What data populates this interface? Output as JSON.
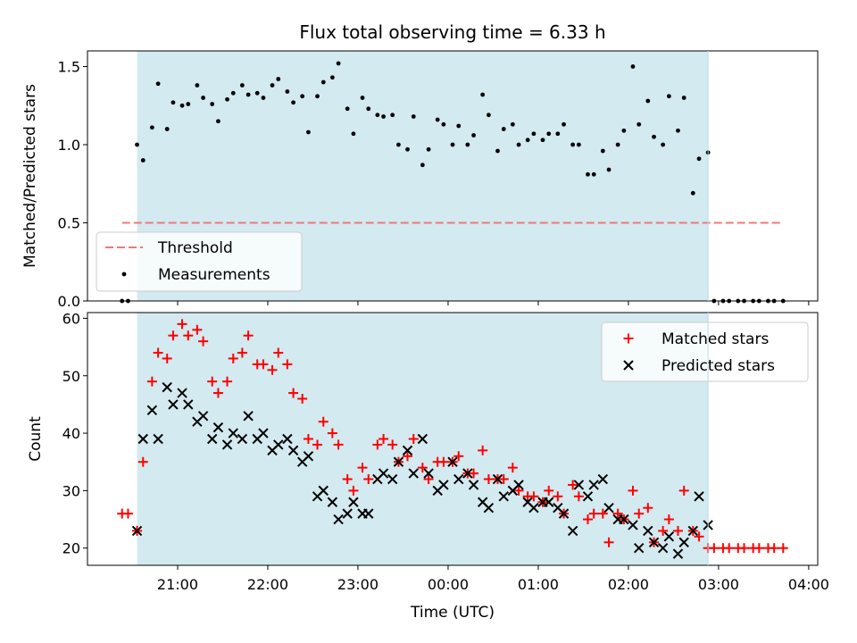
{
  "figure_title": "Flux total observing time = 6.33 h",
  "colors": {
    "shade": "#d3eaf0",
    "threshold": "#f07878",
    "matched": "#ff0000",
    "predicted": "#000000"
  },
  "chart_data": [
    {
      "type": "scatter",
      "title": "Flux total observing time = 6.33 h",
      "ylabel": "Matched/Predicted stars",
      "xlabel": "",
      "ylim": [
        0,
        1.6
      ],
      "yticks": [
        0.0,
        0.5,
        1.0,
        1.5
      ],
      "ytick_labels": [
        "0.0",
        "0.5",
        "1.0",
        "1.5"
      ],
      "x_unit": "hours since 20:00 UTC",
      "xlim": [
        0.0,
        8.1
      ],
      "grid": false,
      "legend_position": "lower-left",
      "shaded_interval": {
        "start": "20:33",
        "end": "02:53"
      },
      "threshold": {
        "name": "Threshold",
        "value": 0.5,
        "x_start": "20:23",
        "x_end": "03:43",
        "style": "dashed"
      },
      "series": [
        {
          "name": "Measurements",
          "marker": "dot",
          "x": [
            "20:23",
            "20:27",
            "20:33",
            "20:37",
            "20:43",
            "20:47",
            "20:53",
            "20:57",
            "21:03",
            "21:07",
            "21:13",
            "21:17",
            "21:23",
            "21:27",
            "21:33",
            "21:37",
            "21:43",
            "21:47",
            "21:53",
            "21:57",
            "22:03",
            "22:07",
            "22:13",
            "22:17",
            "22:23",
            "22:27",
            "22:33",
            "22:37",
            "22:43",
            "22:47",
            "22:53",
            "22:57",
            "23:03",
            "23:07",
            "23:13",
            "23:17",
            "23:23",
            "23:27",
            "23:33",
            "23:37",
            "23:43",
            "23:47",
            "23:53",
            "23:57",
            "00:03",
            "00:07",
            "00:13",
            "00:17",
            "00:23",
            "00:27",
            "00:33",
            "00:37",
            "00:43",
            "00:47",
            "00:53",
            "00:57",
            "01:03",
            "01:07",
            "01:13",
            "01:17",
            "01:23",
            "01:27",
            "01:33",
            "01:37",
            "01:43",
            "01:47",
            "01:53",
            "01:57",
            "02:03",
            "02:07",
            "02:13",
            "02:17",
            "02:23",
            "02:27",
            "02:33",
            "02:37",
            "02:43",
            "02:47",
            "02:53",
            "02:57",
            "03:03",
            "03:07",
            "03:13",
            "03:17",
            "03:23",
            "03:27",
            "03:33",
            "03:37",
            "03:43"
          ],
          "y": [
            0.0,
            0.0,
            1.0,
            0.9,
            1.11,
            1.39,
            1.1,
            1.27,
            1.25,
            1.26,
            1.38,
            1.3,
            1.26,
            1.15,
            1.29,
            1.33,
            1.38,
            1.32,
            1.33,
            1.3,
            1.38,
            1.42,
            1.34,
            1.27,
            1.31,
            1.08,
            1.31,
            1.4,
            1.43,
            1.52,
            1.23,
            1.07,
            1.3,
            1.23,
            1.19,
            1.18,
            1.19,
            1.0,
            0.97,
            1.18,
            0.87,
            0.97,
            1.16,
            1.13,
            1.0,
            1.12,
            1.0,
            1.06,
            1.32,
            1.19,
            0.96,
            1.1,
            1.13,
            1.0,
            1.03,
            1.07,
            1.03,
            1.07,
            1.07,
            1.13,
            1.0,
            1.0,
            0.81,
            0.81,
            0.96,
            0.84,
            1.0,
            1.09,
            1.5,
            1.13,
            1.28,
            1.05,
            1.0,
            1.31,
            1.09,
            1.3,
            0.69,
            0.91,
            0.95,
            0.0,
            0.0,
            0.0,
            0.0,
            0.0,
            0.0,
            0.0,
            0.0,
            0.0,
            0.0
          ]
        }
      ]
    },
    {
      "type": "scatter",
      "title": "",
      "ylabel": "Count",
      "xlabel": "Time (UTC)",
      "ylim": [
        17,
        61
      ],
      "yticks": [
        20,
        30,
        40,
        50,
        60
      ],
      "ytick_labels": [
        "20",
        "30",
        "40",
        "50",
        "60"
      ],
      "x_unit": "hours since 20:00 UTC",
      "xlim": [
        0.0,
        8.1
      ],
      "xticks": [
        "21:00",
        "22:00",
        "23:00",
        "00:00",
        "01:00",
        "02:00",
        "03:00",
        "04:00"
      ],
      "grid": false,
      "legend_position": "top-right",
      "shaded_interval": {
        "start": "20:33",
        "end": "02:53"
      },
      "series": [
        {
          "name": "Matched stars",
          "marker": "plus",
          "x": [
            "20:23",
            "20:27",
            "20:33",
            "20:37",
            "20:43",
            "20:47",
            "20:53",
            "20:57",
            "21:03",
            "21:07",
            "21:13",
            "21:17",
            "21:23",
            "21:27",
            "21:33",
            "21:37",
            "21:43",
            "21:47",
            "21:53",
            "21:57",
            "22:03",
            "22:07",
            "22:13",
            "22:17",
            "22:23",
            "22:27",
            "22:33",
            "22:37",
            "22:43",
            "22:47",
            "22:53",
            "22:57",
            "23:03",
            "23:07",
            "23:13",
            "23:17",
            "23:23",
            "23:27",
            "23:33",
            "23:37",
            "23:43",
            "23:47",
            "23:53",
            "23:57",
            "00:03",
            "00:07",
            "00:13",
            "00:17",
            "00:23",
            "00:27",
            "00:33",
            "00:37",
            "00:43",
            "00:47",
            "00:53",
            "00:57",
            "01:03",
            "01:07",
            "01:13",
            "01:17",
            "01:23",
            "01:27",
            "01:33",
            "01:37",
            "01:43",
            "01:47",
            "01:53",
            "01:57",
            "02:03",
            "02:07",
            "02:13",
            "02:17",
            "02:23",
            "02:27",
            "02:33",
            "02:37",
            "02:43",
            "02:47",
            "02:53",
            "02:57",
            "03:03",
            "03:07",
            "03:13",
            "03:17",
            "03:23",
            "03:27",
            "03:33",
            "03:37",
            "03:43"
          ],
          "y": [
            26,
            26,
            23,
            35,
            49,
            54,
            53,
            57,
            59,
            57,
            58,
            56,
            49,
            47,
            49,
            53,
            54,
            57,
            52,
            52,
            51,
            54,
            52,
            47,
            46,
            39,
            38,
            42,
            40,
            38,
            32,
            30,
            34,
            32,
            38,
            39,
            38,
            35,
            36,
            39,
            34,
            32,
            35,
            35,
            35,
            36,
            33,
            33,
            37,
            32,
            32,
            32,
            34,
            30,
            29,
            29,
            28,
            30,
            29,
            26,
            31,
            29,
            25,
            26,
            26,
            21,
            26,
            25,
            30,
            26,
            27,
            21,
            23,
            25,
            23,
            30,
            23,
            22,
            20,
            20,
            20,
            20,
            20,
            20,
            20,
            20,
            20,
            20,
            20
          ]
        },
        {
          "name": "Predicted stars",
          "marker": "x",
          "x": [
            "20:33",
            "20:37",
            "20:43",
            "20:47",
            "20:53",
            "20:57",
            "21:03",
            "21:07",
            "21:13",
            "21:17",
            "21:23",
            "21:27",
            "21:33",
            "21:37",
            "21:43",
            "21:47",
            "21:53",
            "21:57",
            "22:03",
            "22:07",
            "22:13",
            "22:17",
            "22:23",
            "22:27",
            "22:33",
            "22:37",
            "22:43",
            "22:47",
            "22:53",
            "22:57",
            "23:03",
            "23:07",
            "23:13",
            "23:17",
            "23:23",
            "23:27",
            "23:33",
            "23:37",
            "23:43",
            "23:47",
            "23:53",
            "23:57",
            "00:03",
            "00:07",
            "00:13",
            "00:17",
            "00:23",
            "00:27",
            "00:33",
            "00:37",
            "00:43",
            "00:47",
            "00:53",
            "00:57",
            "01:03",
            "01:07",
            "01:13",
            "01:17",
            "01:23",
            "01:27",
            "01:33",
            "01:37",
            "01:43",
            "01:47",
            "01:53",
            "01:57",
            "02:03",
            "02:07",
            "02:13",
            "02:17",
            "02:23",
            "02:27",
            "02:33",
            "02:37",
            "02:43",
            "02:47",
            "02:53"
          ],
          "y": [
            23,
            39,
            44,
            39,
            48,
            45,
            47,
            45,
            42,
            43,
            39,
            41,
            38,
            40,
            39,
            43,
            39,
            40,
            37,
            38,
            39,
            37,
            35,
            36,
            29,
            30,
            28,
            25,
            26,
            28,
            26,
            26,
            32,
            33,
            32,
            35,
            37,
            33,
            39,
            33,
            30,
            31,
            35,
            32,
            33,
            31,
            28,
            27,
            32,
            29,
            30,
            31,
            28,
            27,
            28,
            28,
            27,
            26,
            23,
            31,
            29,
            31,
            32,
            27,
            25,
            25,
            24,
            20,
            23,
            21,
            20,
            22,
            19,
            21,
            23,
            29,
            24
          ],
          "x_offset": [
            0,
            0,
            0,
            0,
            0,
            0,
            0,
            0,
            0,
            0,
            0,
            0,
            0,
            0,
            0,
            0,
            0,
            0,
            0,
            0,
            0,
            0,
            0,
            0,
            0,
            0,
            0,
            0,
            0,
            0,
            0,
            0,
            0,
            0,
            0,
            0,
            0,
            0,
            0,
            0,
            0,
            0,
            0,
            0,
            0,
            0,
            0,
            0,
            0,
            0,
            0,
            0,
            0,
            0,
            0,
            0,
            0,
            0,
            0,
            0,
            0,
            0,
            0,
            0,
            0,
            0,
            0,
            0,
            0,
            0,
            0,
            0,
            0,
            0,
            0,
            0,
            0
          ]
        }
      ]
    }
  ]
}
